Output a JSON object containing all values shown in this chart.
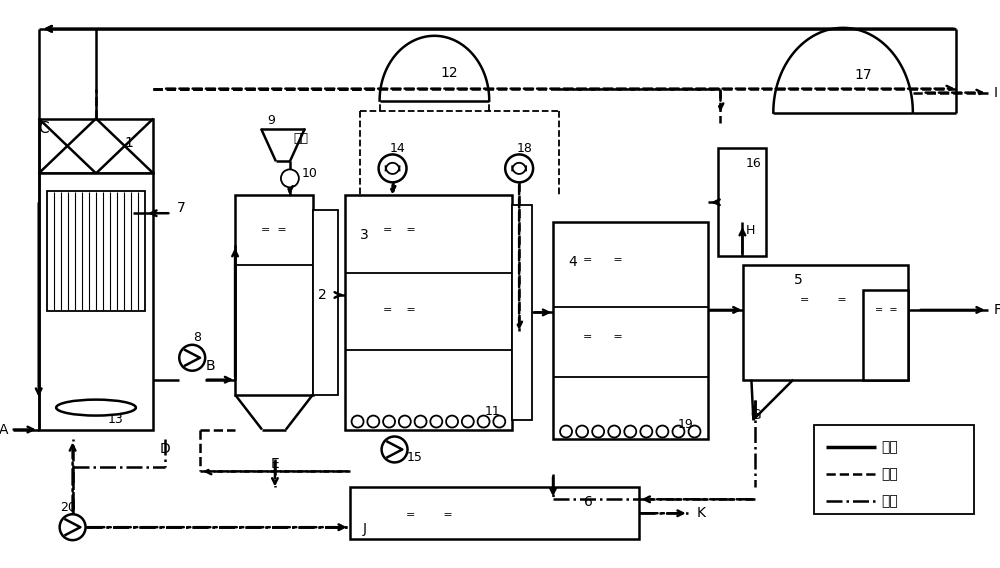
{
  "bg_color": "#ffffff",
  "lc": "#000000",
  "legend": [
    "污水",
    "气体",
    "污泥"
  ]
}
